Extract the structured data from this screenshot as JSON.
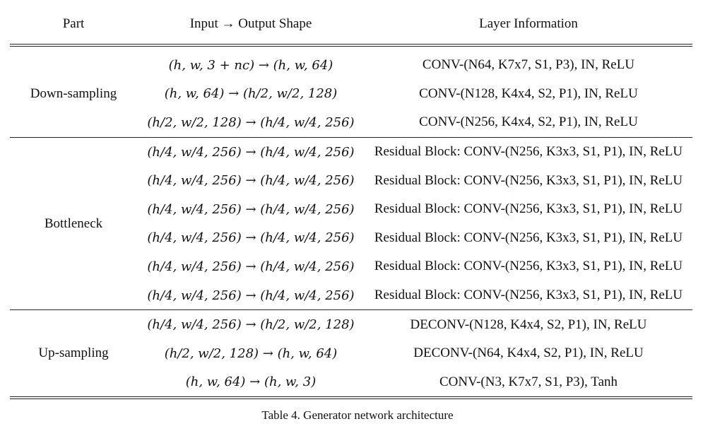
{
  "header": {
    "part": "Part",
    "shape": "Input → Output Shape",
    "info": "Layer Information"
  },
  "groups": [
    {
      "part": "Down-sampling",
      "rows": [
        {
          "shape": "(h, w, 3 + nc) → (h, w, 64)",
          "info": "CONV-(N64, K7x7, S1, P3), IN, ReLU"
        },
        {
          "shape": "(h, w, 64) → (h/2, w/2, 128)",
          "info": "CONV-(N128, K4x4, S2, P1), IN, ReLU"
        },
        {
          "shape": "(h/2, w/2, 128) → (h/4, w/4, 256)",
          "info": "CONV-(N256, K4x4, S2, P1), IN, ReLU"
        }
      ]
    },
    {
      "part": "Bottleneck",
      "rows": [
        {
          "shape": "(h/4, w/4, 256) → (h/4, w/4, 256)",
          "info": "Residual Block: CONV-(N256, K3x3, S1, P1), IN, ReLU"
        },
        {
          "shape": "(h/4, w/4, 256) → (h/4, w/4, 256)",
          "info": "Residual Block: CONV-(N256, K3x3, S1, P1), IN, ReLU"
        },
        {
          "shape": "(h/4, w/4, 256) → (h/4, w/4, 256)",
          "info": "Residual Block: CONV-(N256, K3x3, S1, P1), IN, ReLU"
        },
        {
          "shape": "(h/4, w/4, 256) → (h/4, w/4, 256)",
          "info": "Residual Block: CONV-(N256, K3x3, S1, P1), IN, ReLU"
        },
        {
          "shape": "(h/4, w/4, 256) → (h/4, w/4, 256)",
          "info": "Residual Block: CONV-(N256, K3x3, S1, P1), IN, ReLU"
        },
        {
          "shape": "(h/4, w/4, 256) → (h/4, w/4, 256)",
          "info": "Residual Block: CONV-(N256, K3x3, S1, P1), IN, ReLU"
        }
      ]
    },
    {
      "part": "Up-sampling",
      "rows": [
        {
          "shape": "(h/4, w/4, 256) → (h/2, w/2, 128)",
          "info": "DECONV-(N128, K4x4, S2, P1), IN, ReLU"
        },
        {
          "shape": "(h/2, w/2, 128) → (h, w, 64)",
          "info": "DECONV-(N64, K4x4, S2, P1), IN, ReLU"
        },
        {
          "shape": "(h, w, 64) → (h, w, 3)",
          "info": "CONV-(N3, K7x7, S1, P3), Tanh"
        }
      ]
    }
  ],
  "caption": "Table 4. Generator network architecture"
}
